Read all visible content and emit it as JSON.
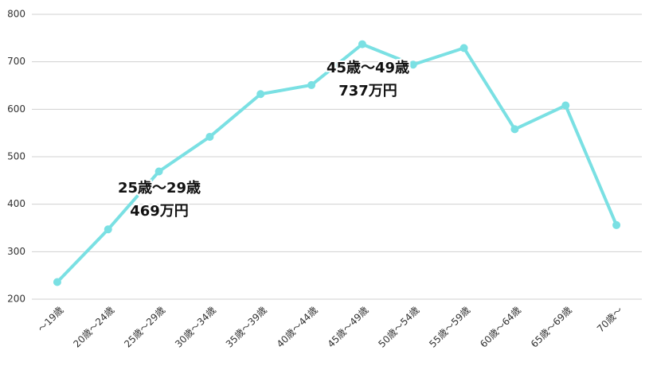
{
  "chart_data": {
    "type": "line",
    "categories": [
      "～19歳",
      "20歳～24歳",
      "25歳～29歳",
      "30歳～34歳",
      "35歳～39歳",
      "40歳～44歳",
      "45歳～49歳",
      "50歳～54歳",
      "55歳～59歳",
      "60歳～64歳",
      "65歳～69歳",
      "70歳～"
    ],
    "values": [
      236,
      347,
      469,
      542,
      632,
      651,
      737,
      694,
      729,
      558,
      608,
      356
    ],
    "color": "#7ae0e3",
    "ylim": [
      200,
      800
    ],
    "yticks": [
      200,
      300,
      400,
      500,
      600,
      700,
      800
    ],
    "grid": true,
    "annotations": [
      [
        "25歳～29歳",
        "469万円"
      ],
      [
        "45歳～49歳",
        "737万円"
      ]
    ]
  }
}
